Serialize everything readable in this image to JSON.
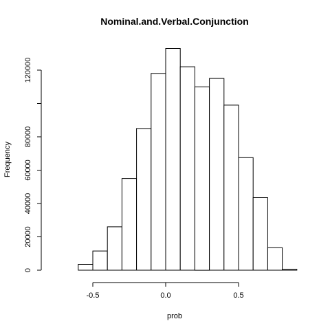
{
  "chart_data": {
    "type": "bar",
    "title": "Nominal.and.Verbal.Conjunction",
    "xlabel": "prob",
    "ylabel": "Frequency",
    "x_ticks": [
      "-0.5",
      "0.0",
      "0.5"
    ],
    "x_tick_values": [
      -0.5,
      0.0,
      0.5
    ],
    "y_ticks": [
      "0",
      "20000",
      "40000",
      "60000",
      "80000",
      "",
      "120000"
    ],
    "y_tick_values": [
      0,
      20000,
      40000,
      60000,
      80000,
      100000,
      120000
    ],
    "bin_width": 0.1,
    "bin_starts": [
      -0.8,
      -0.7,
      -0.6,
      -0.5,
      -0.4,
      -0.3,
      -0.2,
      -0.1,
      0.0,
      0.1,
      0.2,
      0.3,
      0.4,
      0.5,
      0.6,
      0.7,
      0.8
    ],
    "values": [
      0,
      0,
      3500,
      11500,
      26000,
      55000,
      85000,
      118000,
      133000,
      122000,
      110000,
      115000,
      99000,
      67500,
      43500,
      13500,
      600
    ],
    "xlim": [
      -0.8,
      0.9
    ],
    "ylim": [
      0,
      133000
    ],
    "grid": false
  }
}
